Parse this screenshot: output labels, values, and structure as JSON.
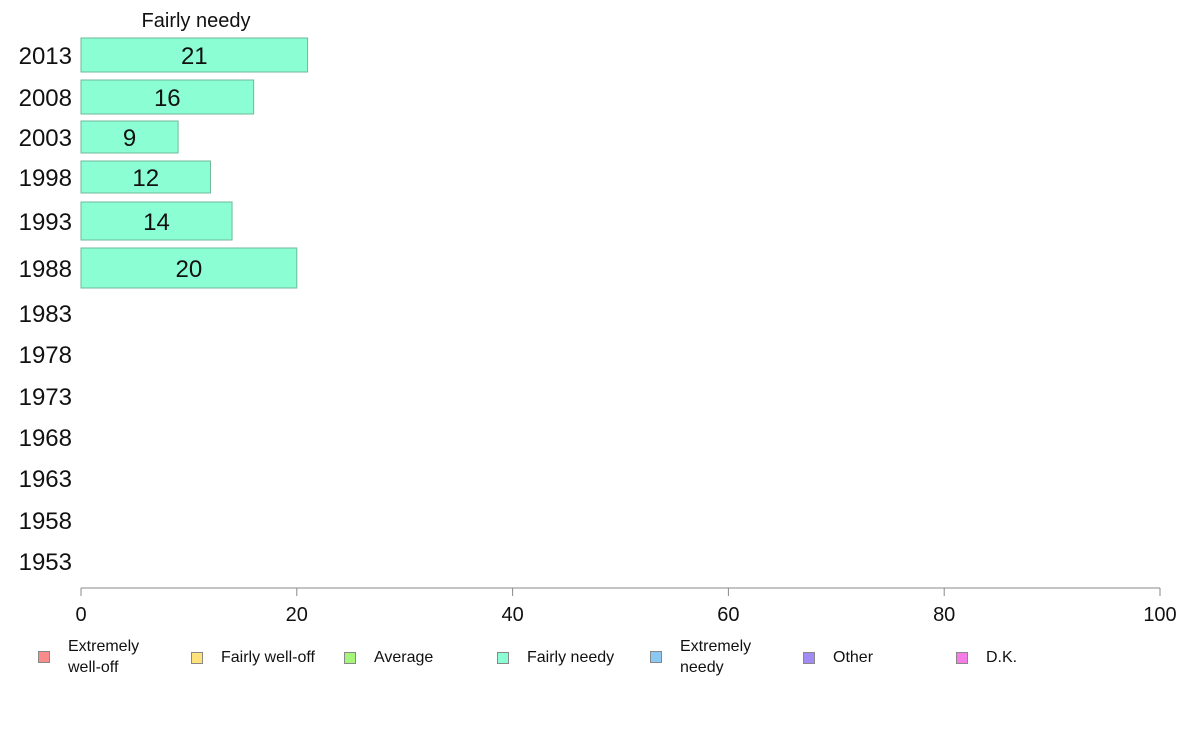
{
  "chart_data": {
    "type": "bar",
    "orientation": "horizontal",
    "title": "Fairly needy",
    "categories": [
      "2013",
      "2008",
      "2003",
      "1998",
      "1993",
      "1988",
      "1983",
      "1978",
      "1973",
      "1968",
      "1963",
      "1958",
      "1953"
    ],
    "series": [
      {
        "name": "Fairly needy",
        "color": "#8bffd3",
        "values": [
          21,
          16,
          9,
          12,
          14,
          20,
          null,
          null,
          null,
          null,
          null,
          null,
          null
        ]
      }
    ],
    "xlim": [
      0,
      100
    ],
    "xticks": [
      0,
      20,
      40,
      60,
      80,
      100
    ],
    "grid": false,
    "legend_position": "bottom"
  },
  "legend": [
    {
      "label": "Extremely\nwell-off",
      "color": "#f98b8b"
    },
    {
      "label": "Fairly well-off",
      "color": "#ffe27a"
    },
    {
      "label": "Average",
      "color": "#a6f57b"
    },
    {
      "label": "Fairly needy",
      "color": "#8bffd3"
    },
    {
      "label": "Extremely\nneedy",
      "color": "#8bc7f3"
    },
    {
      "label": "Other",
      "color": "#a38bf5"
    },
    {
      "label": "D.K.",
      "color": "#f77de6"
    }
  ]
}
